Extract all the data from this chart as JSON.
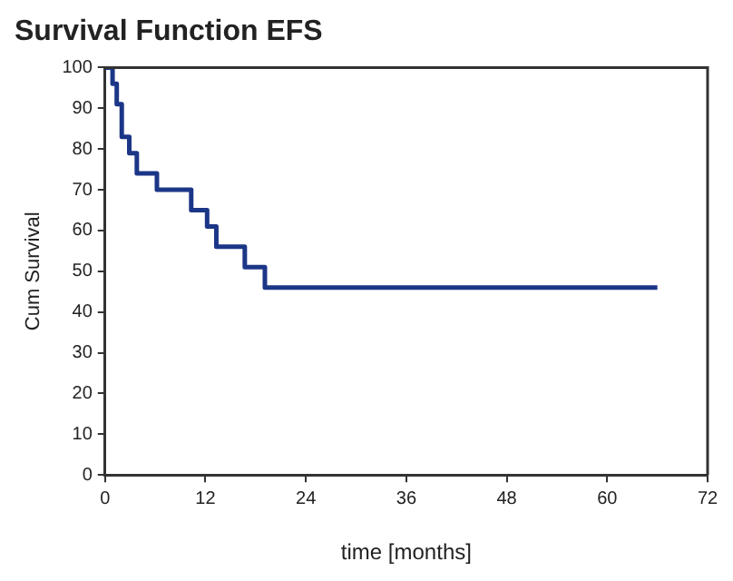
{
  "chart_data": {
    "type": "step",
    "title": "Survival Function EFS",
    "xlabel": "time [months]",
    "ylabel": "Cum Survival",
    "x": [
      0,
      0.9,
      1.4,
      2.0,
      2.9,
      3.8,
      6.2,
      10.3,
      12.2,
      13.3,
      16.7,
      19.1,
      66
    ],
    "series": [
      {
        "color": "#1c3687",
        "values": [
          100,
          96,
          91,
          83,
          79,
          74,
          70,
          65,
          61,
          56,
          51,
          46,
          46
        ]
      }
    ],
    "xlim": [
      0,
      72
    ],
    "xticks": [
      0,
      12,
      24,
      36,
      48,
      60,
      72
    ],
    "ylim": [
      0,
      100
    ],
    "yticks": [
      0,
      10,
      20,
      30,
      40,
      50,
      60,
      70,
      80,
      90,
      100
    ],
    "grid": false,
    "legend": false,
    "marker": "none",
    "line_style": "solid"
  }
}
